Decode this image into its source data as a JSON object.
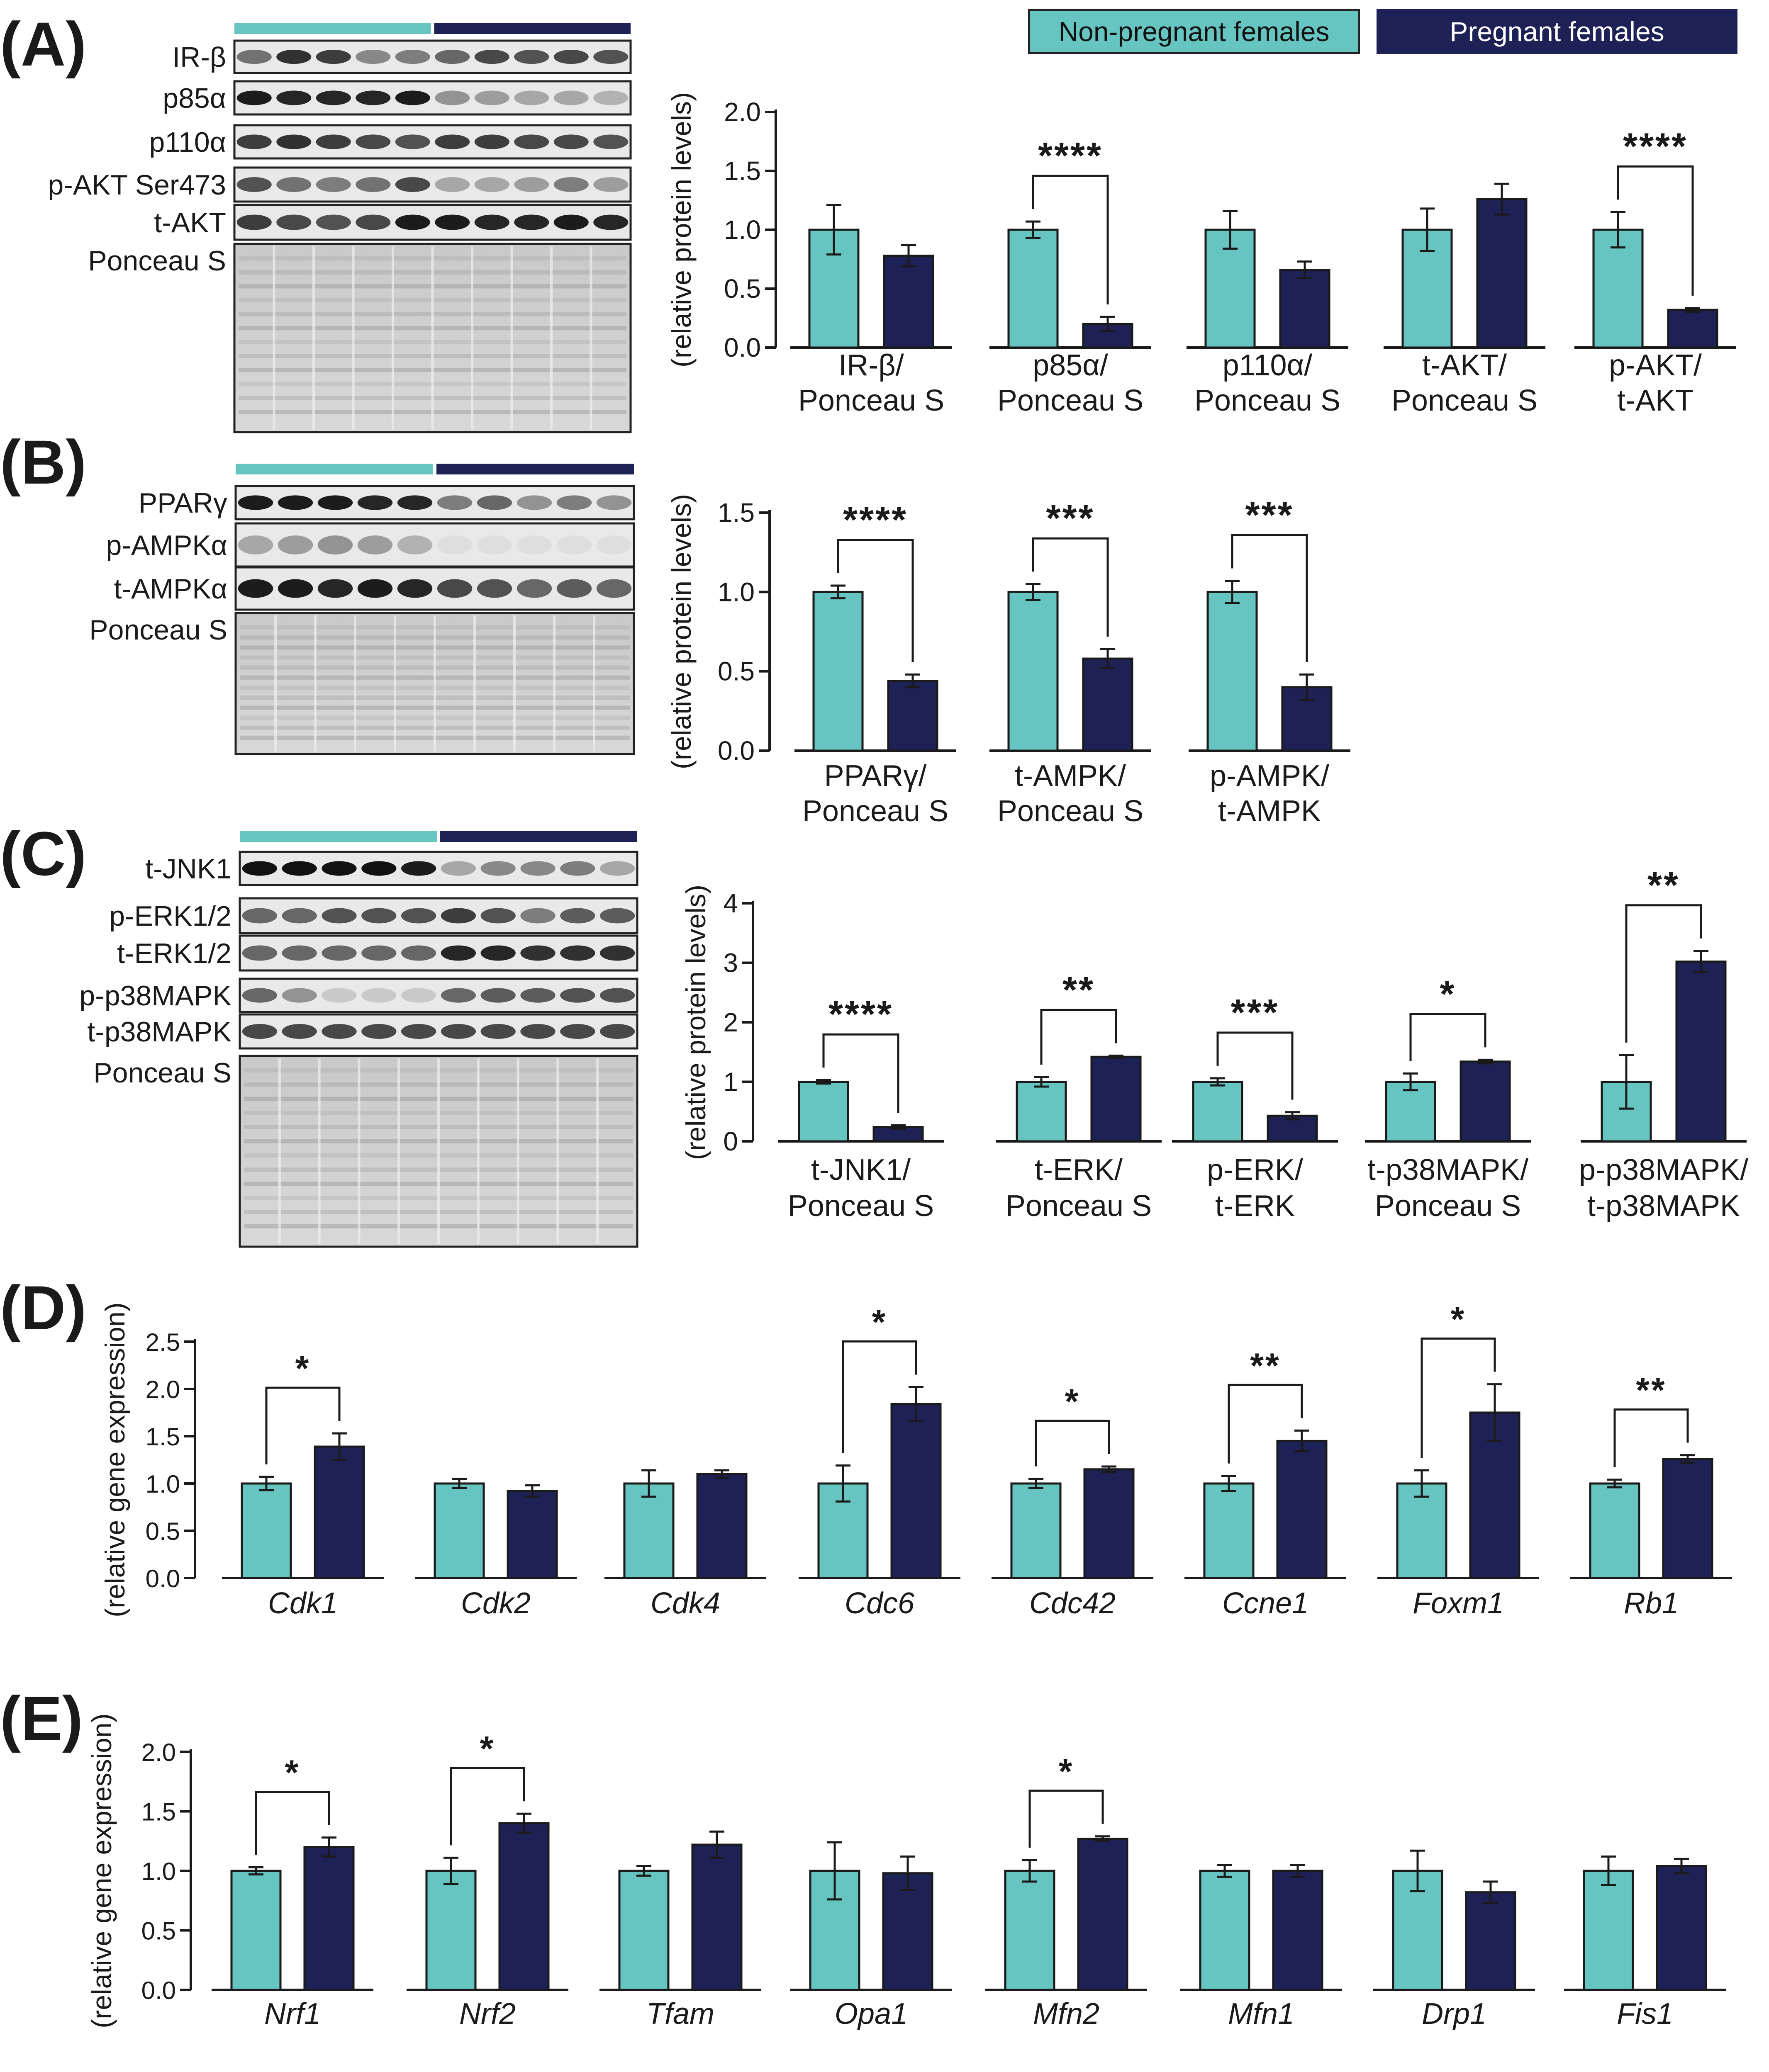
{
  "colors": {
    "non_pregnant": "#67C5C1",
    "pregnant": "#1E2156",
    "axis": "#1a1a1a"
  },
  "legend": {
    "non_pregnant_label": "Non-pregnant females",
    "pregnant_label": "Pregnant females"
  },
  "panel_labels": [
    "(A)",
    "(B)",
    "(C)",
    "(D)",
    "(E)"
  ],
  "blots": [
    {
      "panel": "A",
      "lane_count": 10,
      "rows": [
        {
          "label": "IR-β",
          "bands": [
            0.55,
            0.85,
            0.8,
            0.45,
            0.5,
            0.6,
            0.75,
            0.7,
            0.75,
            0.7
          ]
        },
        {
          "label": "p85α",
          "bands": [
            0.95,
            0.9,
            0.9,
            0.9,
            0.95,
            0.4,
            0.35,
            0.3,
            0.3,
            0.25
          ]
        },
        {
          "label": "p110α",
          "bands": [
            0.8,
            0.85,
            0.8,
            0.75,
            0.7,
            0.8,
            0.8,
            0.75,
            0.75,
            0.7
          ]
        },
        {
          "label": "p-AKT Ser473",
          "bands": [
            0.7,
            0.55,
            0.5,
            0.55,
            0.75,
            0.3,
            0.3,
            0.35,
            0.5,
            0.35
          ]
        },
        {
          "label": "t-AKT",
          "bands": [
            0.8,
            0.75,
            0.7,
            0.75,
            0.95,
            0.95,
            0.9,
            0.9,
            0.95,
            0.9
          ]
        },
        {
          "label": "Ponceau S",
          "bands": []
        }
      ]
    },
    {
      "panel": "B",
      "lane_count": 10,
      "rows": [
        {
          "label": "PPARγ",
          "bands": [
            0.95,
            0.95,
            0.95,
            0.9,
            0.9,
            0.5,
            0.6,
            0.4,
            0.5,
            0.4
          ]
        },
        {
          "label": "p-AMPKα",
          "bands": [
            0.3,
            0.35,
            0.4,
            0.35,
            0.25,
            0.05,
            0.05,
            0.05,
            0.05,
            0.05
          ]
        },
        {
          "label": "t-AMPKα",
          "bands": [
            0.95,
            0.95,
            0.9,
            0.95,
            0.9,
            0.75,
            0.7,
            0.6,
            0.65,
            0.6
          ]
        },
        {
          "label": "Ponceau S",
          "bands": []
        }
      ]
    },
    {
      "panel": "C",
      "lane_count": 10,
      "rows": [
        {
          "label": "t-JNK1",
          "bands": [
            1.0,
            1.0,
            1.0,
            1.0,
            0.95,
            0.3,
            0.45,
            0.45,
            0.5,
            0.3
          ]
        },
        {
          "label": "p-ERK1/2",
          "bands": [
            0.6,
            0.6,
            0.7,
            0.7,
            0.7,
            0.8,
            0.7,
            0.5,
            0.65,
            0.65
          ]
        },
        {
          "label": "t-ERK1/2",
          "bands": [
            0.6,
            0.6,
            0.6,
            0.6,
            0.6,
            0.9,
            0.9,
            0.85,
            0.85,
            0.85
          ]
        },
        {
          "label": "p-p38MAPK",
          "bands": [
            0.6,
            0.4,
            0.15,
            0.15,
            0.15,
            0.6,
            0.65,
            0.65,
            0.7,
            0.7
          ]
        },
        {
          "label": "t-p38MAPK",
          "bands": [
            0.75,
            0.75,
            0.75,
            0.75,
            0.75,
            0.75,
            0.75,
            0.75,
            0.75,
            0.75
          ]
        },
        {
          "label": "Ponceau S",
          "bands": []
        }
      ]
    }
  ],
  "chart_data": [
    {
      "panel": "A",
      "type": "bar",
      "ylabel": "(relative protein levels)",
      "ylim": [
        0,
        2.0
      ],
      "yticks": [
        "0.0",
        "0.5",
        "1.0",
        "1.5",
        "2.0"
      ],
      "groups": [
        {
          "label": [
            "IR-β/",
            "Ponceau S"
          ],
          "non_pregnant": 1.0,
          "np_err": 0.21,
          "pregnant": 0.78,
          "p_err": 0.09,
          "sig": ""
        },
        {
          "label": [
            "p85α/",
            "Ponceau S"
          ],
          "non_pregnant": 1.0,
          "np_err": 0.07,
          "pregnant": 0.2,
          "p_err": 0.06,
          "sig": "****"
        },
        {
          "label": [
            "p110α/",
            "Ponceau S"
          ],
          "non_pregnant": 1.0,
          "np_err": 0.16,
          "pregnant": 0.66,
          "p_err": 0.07,
          "sig": ""
        },
        {
          "label": [
            "t-AKT/",
            "Ponceau S"
          ],
          "non_pregnant": 1.0,
          "np_err": 0.18,
          "pregnant": 1.26,
          "p_err": 0.13,
          "sig": ""
        },
        {
          "label": [
            "p-AKT/",
            "t-AKT"
          ],
          "non_pregnant": 1.0,
          "np_err": 0.15,
          "pregnant": 0.32,
          "p_err": 0.015,
          "sig": "****"
        }
      ]
    },
    {
      "panel": "B",
      "type": "bar",
      "ylabel": "(relative protein levels)",
      "ylim": [
        0,
        1.5
      ],
      "yticks": [
        "0.0",
        "0.5",
        "1.0",
        "1.5"
      ],
      "groups": [
        {
          "label": [
            "PPARγ/",
            "Ponceau S"
          ],
          "non_pregnant": 1.0,
          "np_err": 0.04,
          "pregnant": 0.44,
          "p_err": 0.04,
          "sig": "****"
        },
        {
          "label": [
            "t-AMPK/",
            "Ponceau S"
          ],
          "non_pregnant": 1.0,
          "np_err": 0.05,
          "pregnant": 0.58,
          "p_err": 0.06,
          "sig": "***"
        },
        {
          "label": [
            "p-AMPK/",
            "t-AMPK"
          ],
          "non_pregnant": 1.0,
          "np_err": 0.07,
          "pregnant": 0.4,
          "p_err": 0.08,
          "sig": "***"
        }
      ]
    },
    {
      "panel": "C",
      "type": "bar",
      "ylabel": "(relative protein levels)",
      "ylim": [
        0,
        4
      ],
      "yticks": [
        "0",
        "1",
        "2",
        "3",
        "4"
      ],
      "groups": [
        {
          "label": [
            "t-JNK1/",
            "Ponceau S"
          ],
          "non_pregnant": 1.0,
          "np_err": 0.03,
          "pregnant": 0.24,
          "p_err": 0.03,
          "sig": "****"
        },
        {
          "label": [
            "t-ERK/",
            "Ponceau S"
          ],
          "non_pregnant": 1.0,
          "np_err": 0.08,
          "pregnant": 1.42,
          "p_err": 0.02,
          "sig": "**"
        },
        {
          "label": [
            "p-ERK/",
            "t-ERK"
          ],
          "non_pregnant": 1.0,
          "np_err": 0.06,
          "pregnant": 0.43,
          "p_err": 0.06,
          "sig": "***"
        },
        {
          "label": [
            "t-p38MAPK/",
            "Ponceau S"
          ],
          "non_pregnant": 1.0,
          "np_err": 0.14,
          "pregnant": 1.34,
          "p_err": 0.03,
          "sig": "*"
        },
        {
          "label": [
            "p-p38MAPK/",
            "t-p38MAPK"
          ],
          "non_pregnant": 1.0,
          "np_err": 0.45,
          "pregnant": 3.02,
          "p_err": 0.18,
          "sig": "**"
        }
      ]
    },
    {
      "panel": "D",
      "type": "bar",
      "ylabel": "(relative gene expression)",
      "ylim": [
        0,
        2.5
      ],
      "yticks": [
        "0.0",
        "0.5",
        "1.0",
        "1.5",
        "2.0",
        "2.5"
      ],
      "groups": [
        {
          "label": [
            "Cdk1"
          ],
          "non_pregnant": 1.0,
          "np_err": 0.07,
          "pregnant": 1.39,
          "p_err": 0.14,
          "sig": "*"
        },
        {
          "label": [
            "Cdk2"
          ],
          "non_pregnant": 1.0,
          "np_err": 0.05,
          "pregnant": 0.92,
          "p_err": 0.06,
          "sig": ""
        },
        {
          "label": [
            "Cdk4"
          ],
          "non_pregnant": 1.0,
          "np_err": 0.14,
          "pregnant": 1.1,
          "p_err": 0.04,
          "sig": ""
        },
        {
          "label": [
            "Cdc6"
          ],
          "non_pregnant": 1.0,
          "np_err": 0.19,
          "pregnant": 1.84,
          "p_err": 0.18,
          "sig": "*"
        },
        {
          "label": [
            "Cdc42"
          ],
          "non_pregnant": 1.0,
          "np_err": 0.05,
          "pregnant": 1.15,
          "p_err": 0.03,
          "sig": "*"
        },
        {
          "label": [
            "Ccne1"
          ],
          "non_pregnant": 1.0,
          "np_err": 0.08,
          "pregnant": 1.45,
          "p_err": 0.11,
          "sig": "**"
        },
        {
          "label": [
            "Foxm1"
          ],
          "non_pregnant": 1.0,
          "np_err": 0.14,
          "pregnant": 1.75,
          "p_err": 0.3,
          "sig": "*"
        },
        {
          "label": [
            "Rb1"
          ],
          "non_pregnant": 1.0,
          "np_err": 0.04,
          "pregnant": 1.26,
          "p_err": 0.04,
          "sig": "**"
        }
      ]
    },
    {
      "panel": "E",
      "type": "bar",
      "ylabel": "(relative gene expression)",
      "ylim": [
        0,
        2.0
      ],
      "yticks": [
        "0.0",
        "0.5",
        "1.0",
        "1.5",
        "2.0"
      ],
      "groups": [
        {
          "label": [
            "Nrf1"
          ],
          "non_pregnant": 1.0,
          "np_err": 0.03,
          "pregnant": 1.2,
          "p_err": 0.08,
          "sig": "*"
        },
        {
          "label": [
            "Nrf2"
          ],
          "non_pregnant": 1.0,
          "np_err": 0.11,
          "pregnant": 1.4,
          "p_err": 0.08,
          "sig": "*"
        },
        {
          "label": [
            "Tfam"
          ],
          "non_pregnant": 1.0,
          "np_err": 0.04,
          "pregnant": 1.22,
          "p_err": 0.11,
          "sig": ""
        },
        {
          "label": [
            "Opa1"
          ],
          "non_pregnant": 1.0,
          "np_err": 0.24,
          "pregnant": 0.98,
          "p_err": 0.14,
          "sig": ""
        },
        {
          "label": [
            "Mfn2"
          ],
          "non_pregnant": 1.0,
          "np_err": 0.09,
          "pregnant": 1.27,
          "p_err": 0.02,
          "sig": "*"
        },
        {
          "label": [
            "Mfn1"
          ],
          "non_pregnant": 1.0,
          "np_err": 0.05,
          "pregnant": 1.0,
          "p_err": 0.05,
          "sig": ""
        },
        {
          "label": [
            "Drp1"
          ],
          "non_pregnant": 1.0,
          "np_err": 0.17,
          "pregnant": 0.82,
          "p_err": 0.09,
          "sig": ""
        },
        {
          "label": [
            "Fis1"
          ],
          "non_pregnant": 1.0,
          "np_err": 0.12,
          "pregnant": 1.04,
          "p_err": 0.06,
          "sig": ""
        }
      ]
    }
  ]
}
